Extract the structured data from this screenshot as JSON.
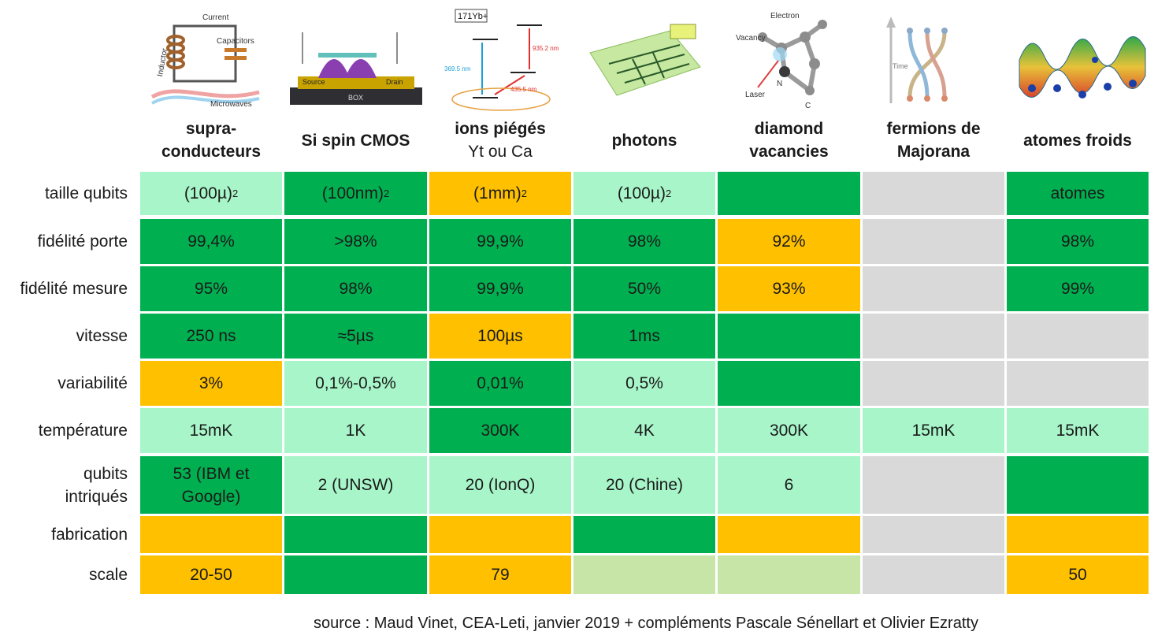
{
  "palette": {
    "dark_green": "#00b050",
    "light_green": "#a7f5c9",
    "orange": "#ffc000",
    "pale_green": "#c6e5a6",
    "gray": "#d9d9d9"
  },
  "columns": [
    {
      "id": "supra",
      "title": "supra-\nconducteurs",
      "subtitle": "",
      "image_labels": [
        "Current",
        "Inductor",
        "Capacitors",
        "Microwaves"
      ]
    },
    {
      "id": "si",
      "title": "Si spin CMOS",
      "subtitle": "",
      "image_labels": [
        "Source",
        "Drain",
        "BOX"
      ]
    },
    {
      "id": "ions",
      "title": "ions piégés",
      "subtitle": "Yt ou Ca",
      "image_labels": [
        "171Yb+",
        "369.5 nm",
        "935.2 nm",
        "435.5 nm"
      ]
    },
    {
      "id": "photons",
      "title": "photons",
      "subtitle": "",
      "image_labels": []
    },
    {
      "id": "diamond",
      "title": "diamond\nvacancies",
      "subtitle": "",
      "image_labels": [
        "Electron",
        "Vacancy",
        "N",
        "Laser",
        "C"
      ]
    },
    {
      "id": "majorana",
      "title": "fermions de\nMajorana",
      "subtitle": "",
      "image_labels": [
        "Time"
      ]
    },
    {
      "id": "cold",
      "title": "atomes froids",
      "subtitle": "",
      "image_labels": []
    }
  ],
  "rows": [
    {
      "label": "taille qubits",
      "cells": [
        {
          "value": "(100µ)",
          "sup": "2",
          "color": "light_green"
        },
        {
          "value": "(100nm)",
          "sup": "2",
          "color": "dark_green"
        },
        {
          "value": "(1mm)",
          "sup": "2",
          "color": "orange"
        },
        {
          "value": "(100µ)",
          "sup": "2",
          "color": "light_green"
        },
        {
          "value": "",
          "color": "dark_green"
        },
        {
          "value": "",
          "color": "gray"
        },
        {
          "value": "atomes",
          "color": "dark_green"
        }
      ]
    },
    {
      "label": "fidélité porte",
      "cells": [
        {
          "value": "99,4%",
          "color": "dark_green"
        },
        {
          "value": ">98%",
          "color": "dark_green"
        },
        {
          "value": "99,9%",
          "color": "dark_green"
        },
        {
          "value": "98%",
          "color": "dark_green"
        },
        {
          "value": "92%",
          "color": "orange"
        },
        {
          "value": "",
          "color": "gray"
        },
        {
          "value": "98%",
          "color": "dark_green"
        }
      ]
    },
    {
      "label": "fidélité mesure",
      "cells": [
        {
          "value": "95%",
          "color": "dark_green"
        },
        {
          "value": "98%",
          "color": "dark_green"
        },
        {
          "value": "99,9%",
          "color": "dark_green"
        },
        {
          "value": "50%",
          "color": "dark_green"
        },
        {
          "value": "93%",
          "color": "orange"
        },
        {
          "value": "",
          "color": "gray"
        },
        {
          "value": "99%",
          "color": "dark_green"
        }
      ]
    },
    {
      "label": "vitesse",
      "cells": [
        {
          "value": "250 ns",
          "color": "dark_green"
        },
        {
          "value": "≈5µs",
          "color": "dark_green"
        },
        {
          "value": "100µs",
          "color": "orange"
        },
        {
          "value": "1ms",
          "color": "dark_green"
        },
        {
          "value": "",
          "color": "dark_green"
        },
        {
          "value": "",
          "color": "gray"
        },
        {
          "value": "",
          "color": "gray"
        }
      ]
    },
    {
      "label": "variabilité",
      "cells": [
        {
          "value": "3%",
          "color": "orange"
        },
        {
          "value": "0,1%-0,5%",
          "color": "light_green"
        },
        {
          "value": "0,01%",
          "color": "dark_green"
        },
        {
          "value": "0,5%",
          "color": "light_green"
        },
        {
          "value": "",
          "color": "dark_green"
        },
        {
          "value": "",
          "color": "gray"
        },
        {
          "value": "",
          "color": "gray"
        }
      ]
    },
    {
      "label": "température",
      "cells": [
        {
          "value": "15mK",
          "color": "light_green"
        },
        {
          "value": "1K",
          "color": "light_green"
        },
        {
          "value": "300K",
          "color": "dark_green"
        },
        {
          "value": "4K",
          "color": "light_green"
        },
        {
          "value": "300K",
          "color": "light_green"
        },
        {
          "value": "15mK",
          "color": "light_green"
        },
        {
          "value": "15mK",
          "color": "light_green"
        }
      ]
    },
    {
      "label": "qubits\nintriqués",
      "cells": [
        {
          "value": "53 (IBM et\nGoogle)",
          "color": "dark_green"
        },
        {
          "value": "2 (UNSW)",
          "color": "light_green"
        },
        {
          "value": "20 (IonQ)",
          "color": "light_green"
        },
        {
          "value": "20 (Chine)",
          "color": "light_green"
        },
        {
          "value": "6",
          "color": "light_green"
        },
        {
          "value": "",
          "color": "gray"
        },
        {
          "value": "",
          "color": "dark_green"
        }
      ]
    },
    {
      "label": "fabrication",
      "cells": [
        {
          "value": "",
          "color": "orange"
        },
        {
          "value": "",
          "color": "dark_green"
        },
        {
          "value": "",
          "color": "orange"
        },
        {
          "value": "",
          "color": "dark_green"
        },
        {
          "value": "",
          "color": "orange"
        },
        {
          "value": "",
          "color": "gray"
        },
        {
          "value": "",
          "color": "orange"
        }
      ]
    },
    {
      "label": "scale",
      "cells": [
        {
          "value": "20-50",
          "color": "orange"
        },
        {
          "value": "",
          "color": "dark_green"
        },
        {
          "value": "79",
          "color": "orange"
        },
        {
          "value": "",
          "color": "pale_green"
        },
        {
          "value": "",
          "color": "pale_green"
        },
        {
          "value": "",
          "color": "gray"
        },
        {
          "value": "50",
          "color": "orange"
        }
      ]
    }
  ],
  "source": "source : Maud Vinet, CEA-Leti, janvier 2019 + compléments Pascale Sénellart et Olivier Ezratty"
}
